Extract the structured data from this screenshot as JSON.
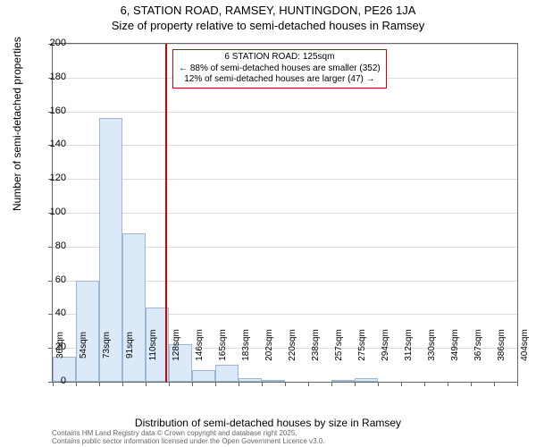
{
  "title_line1": "6, STATION ROAD, RAMSEY, HUNTINGDON, PE26 1JA",
  "title_line2": "Size of property relative to semi-detached houses in Ramsey",
  "y_axis_label": "Number of semi-detached properties",
  "x_axis_label": "Distribution of semi-detached houses by size in Ramsey",
  "footer_line1": "Contains HM Land Registry data © Crown copyright and database right 2025.",
  "footer_line2": "Contains public sector information licensed under the Open Government Licence v3.0.",
  "callout": {
    "line1": "6 STATION ROAD: 125sqm",
    "line2": "← 88% of semi-detached houses are smaller (352)",
    "line3": "12% of semi-detached houses are larger (47) →"
  },
  "chart": {
    "type": "histogram",
    "ylim": [
      0,
      200
    ],
    "yticks": [
      0,
      20,
      40,
      60,
      80,
      100,
      120,
      140,
      160,
      180,
      200
    ],
    "x_labels": [
      "36sqm",
      "54sqm",
      "73sqm",
      "91sqm",
      "110sqm",
      "128sqm",
      "146sqm",
      "165sqm",
      "183sqm",
      "202sqm",
      "220sqm",
      "238sqm",
      "257sqm",
      "275sqm",
      "294sqm",
      "312sqm",
      "330sqm",
      "349sqm",
      "367sqm",
      "386sqm",
      "404sqm"
    ],
    "values": [
      15,
      60,
      156,
      88,
      44,
      22,
      7,
      10,
      2,
      1,
      0,
      0,
      1,
      2,
      0,
      0,
      0,
      0,
      0,
      0
    ],
    "ref_line_position": 4.85,
    "bar_fill": "#dce9f8",
    "bar_border": "#9cb8d6",
    "grid_color": "#dddddd",
    "axis_color": "#666666",
    "ref_color": "#cc0000",
    "background": "#ffffff"
  }
}
